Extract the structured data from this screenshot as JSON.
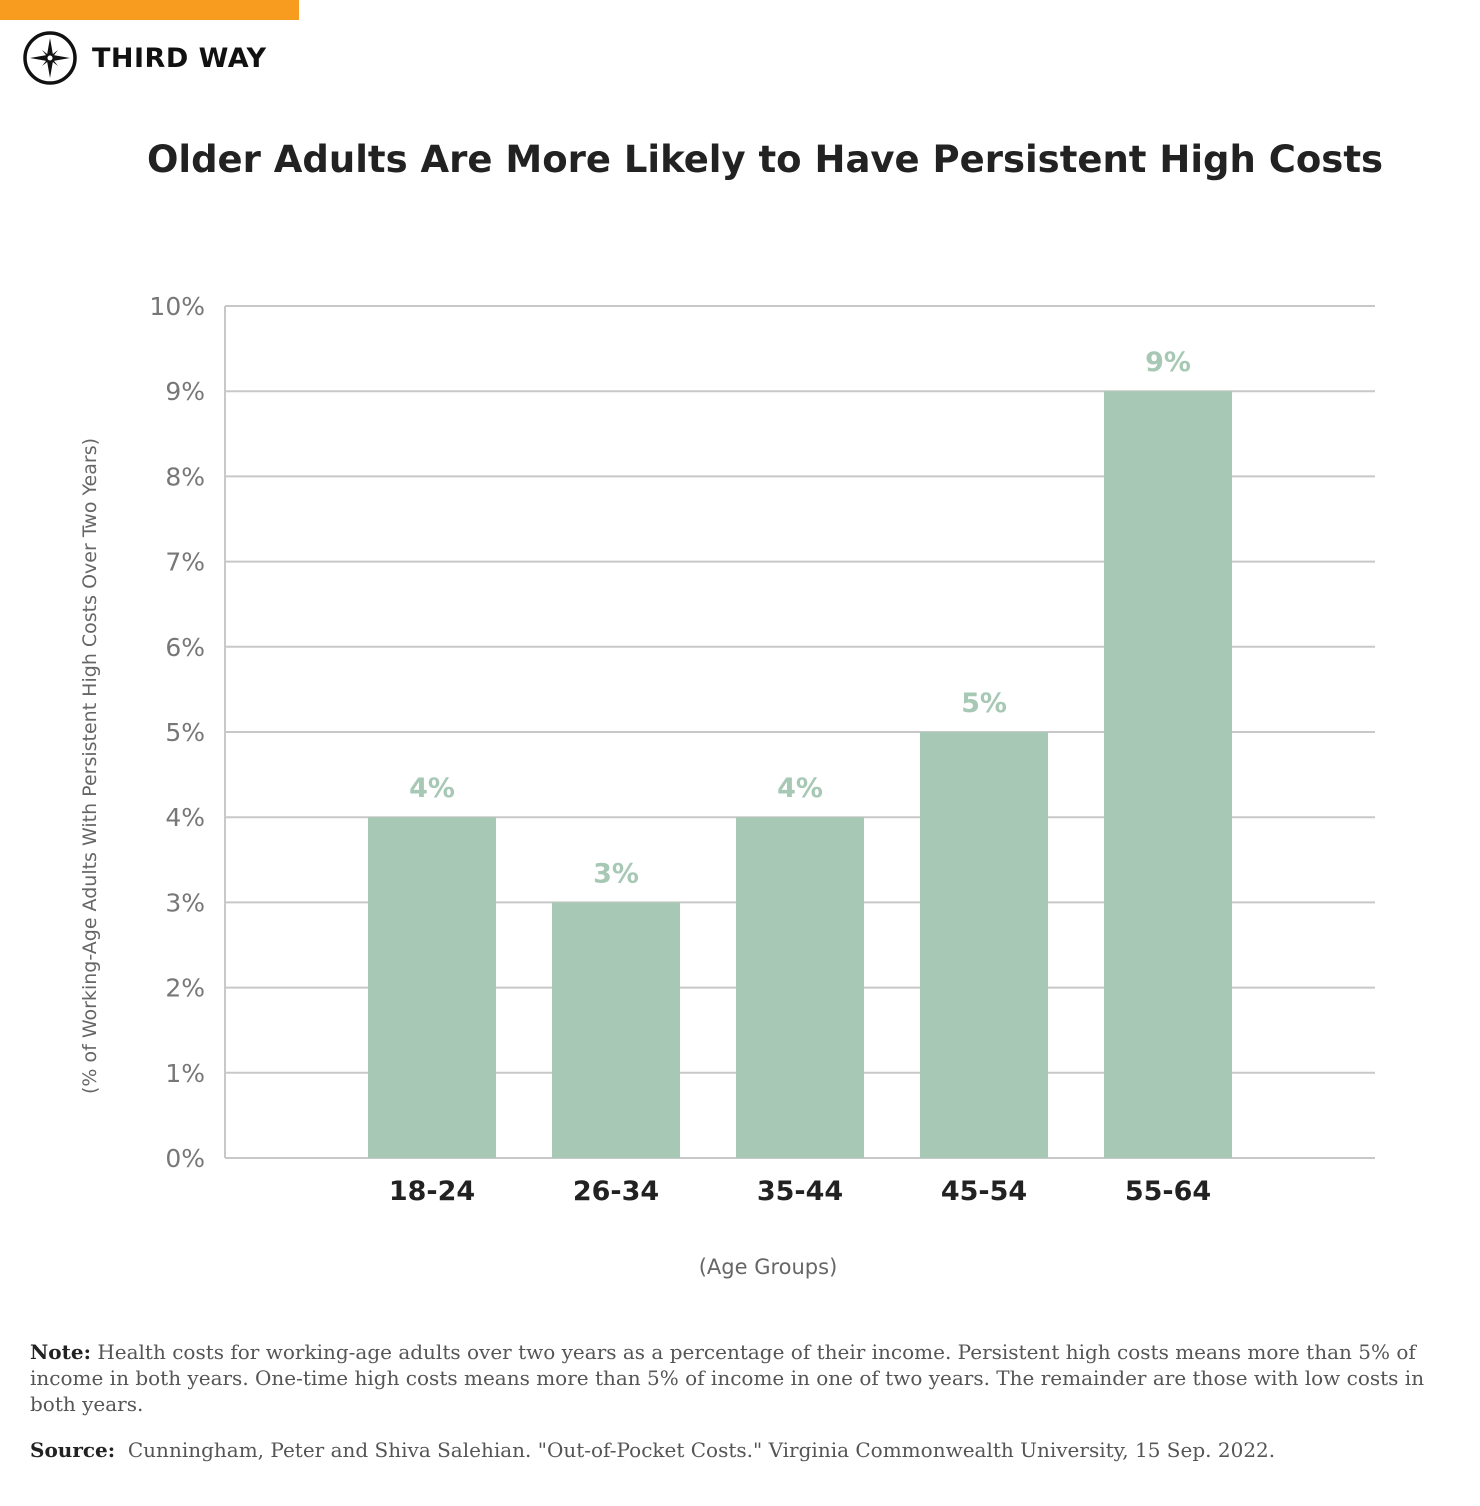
{
  "brand": {
    "name": "THIRD WAY",
    "accent": "#f89c20"
  },
  "chart_data": {
    "type": "bar",
    "title": "Older Adults Are More Likely to Have Persistent High Costs",
    "categories": [
      "18-24",
      "26-34",
      "35-44",
      "45-54",
      "55-64"
    ],
    "values": [
      4,
      3,
      4,
      5,
      9
    ],
    "data_labels": [
      "4%",
      "3%",
      "4%",
      "5%",
      "9%"
    ],
    "xlabel": "(Age Groups)",
    "ylabel": "(% of Working-Age Adults With Persistent High Costs Over Two Years)",
    "ylim": [
      0,
      10
    ],
    "yticks": [
      "0%",
      "1%",
      "2%",
      "3%",
      "4%",
      "5%",
      "6%",
      "7%",
      "8%",
      "9%",
      "10%"
    ],
    "grid": true,
    "bar_color": "#a6c8b4"
  },
  "footer": {
    "note_label": "Note:",
    "note_text": "Health costs for working-age adults over two years as a percentage of their income. Persistent high costs means more than 5% of income in both years. One-time high costs means more than 5% of income in one of two years. The remainder are those with low costs in both years.",
    "source_label": "Source:",
    "source_text": "Cunningham, Peter and Shiva Salehian. \"Out-of-Pocket Costs.\" Virginia Commonwealth University, 15 Sep. 2022."
  }
}
